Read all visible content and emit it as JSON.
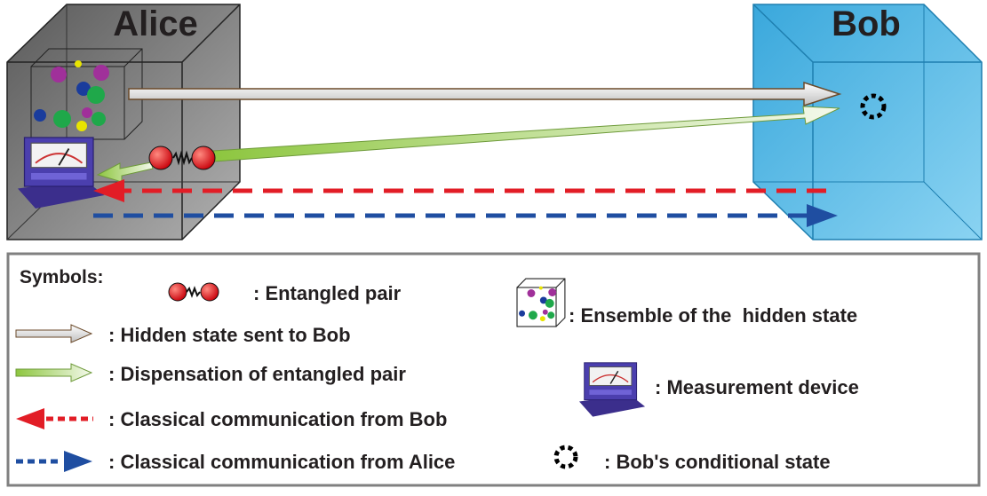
{
  "header": {
    "alice": "Alice",
    "bob": "Bob"
  },
  "legend": {
    "title": "Symbols:",
    "items": [
      ": Entangled pair",
      ": Hidden state sent to Bob",
      ": Dispensation of entangled pair",
      ": Classical communication from Bob",
      ": Classical communication from Alice",
      ": Ensemble of the  hidden state",
      ": Measurement device",
      ": Bob's conditional state"
    ]
  }
}
